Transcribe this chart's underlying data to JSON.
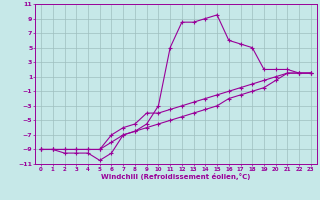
{
  "xlabel": "Windchill (Refroidissement éolien,°C)",
  "background_color": "#c6e8e8",
  "grid_color": "#9fbfbf",
  "line_color": "#990099",
  "xlim": [
    -0.5,
    23.5
  ],
  "ylim": [
    -11,
    11
  ],
  "xticks": [
    0,
    1,
    2,
    3,
    4,
    5,
    6,
    7,
    8,
    9,
    10,
    11,
    12,
    13,
    14,
    15,
    16,
    17,
    18,
    19,
    20,
    21,
    22,
    23
  ],
  "yticks": [
    -11,
    -9,
    -7,
    -5,
    -3,
    -1,
    1,
    3,
    5,
    7,
    9,
    11
  ],
  "line1_x": [
    0,
    1,
    2,
    3,
    4,
    5,
    6,
    7,
    8,
    9,
    10,
    11,
    12,
    13,
    14,
    15,
    16,
    17,
    18,
    19,
    20,
    21,
    22,
    23
  ],
  "line1_y": [
    -9,
    -9,
    -9.5,
    -9.5,
    -9.5,
    -10.5,
    -9.5,
    -7,
    -6.5,
    -5.5,
    -3,
    5,
    8.5,
    8.5,
    9,
    9.5,
    6,
    5.5,
    5,
    2,
    2,
    2,
    1.5,
    1.5
  ],
  "line2_x": [
    0,
    1,
    2,
    3,
    4,
    5,
    6,
    7,
    8,
    9,
    10,
    11,
    12,
    13,
    14,
    15,
    16,
    17,
    18,
    19,
    20,
    21,
    22,
    23
  ],
  "line2_y": [
    -9,
    -9,
    -9,
    -9,
    -9,
    -9,
    -7,
    -6,
    -5.5,
    -4,
    -4,
    -3.5,
    -3,
    -2.5,
    -2,
    -1.5,
    -1,
    -0.5,
    0,
    0.5,
    1,
    1.5,
    1.5,
    1.5
  ],
  "line3_x": [
    0,
    1,
    2,
    3,
    4,
    5,
    6,
    7,
    8,
    9,
    10,
    11,
    12,
    13,
    14,
    15,
    16,
    17,
    18,
    19,
    20,
    21,
    22,
    23
  ],
  "line3_y": [
    -9,
    -9,
    -9,
    -9,
    -9,
    -9,
    -8,
    -7,
    -6.5,
    -6,
    -5.5,
    -5,
    -4.5,
    -4,
    -3.5,
    -3,
    -2,
    -1.5,
    -1,
    -0.5,
    0.5,
    1.5,
    1.5,
    1.5
  ]
}
